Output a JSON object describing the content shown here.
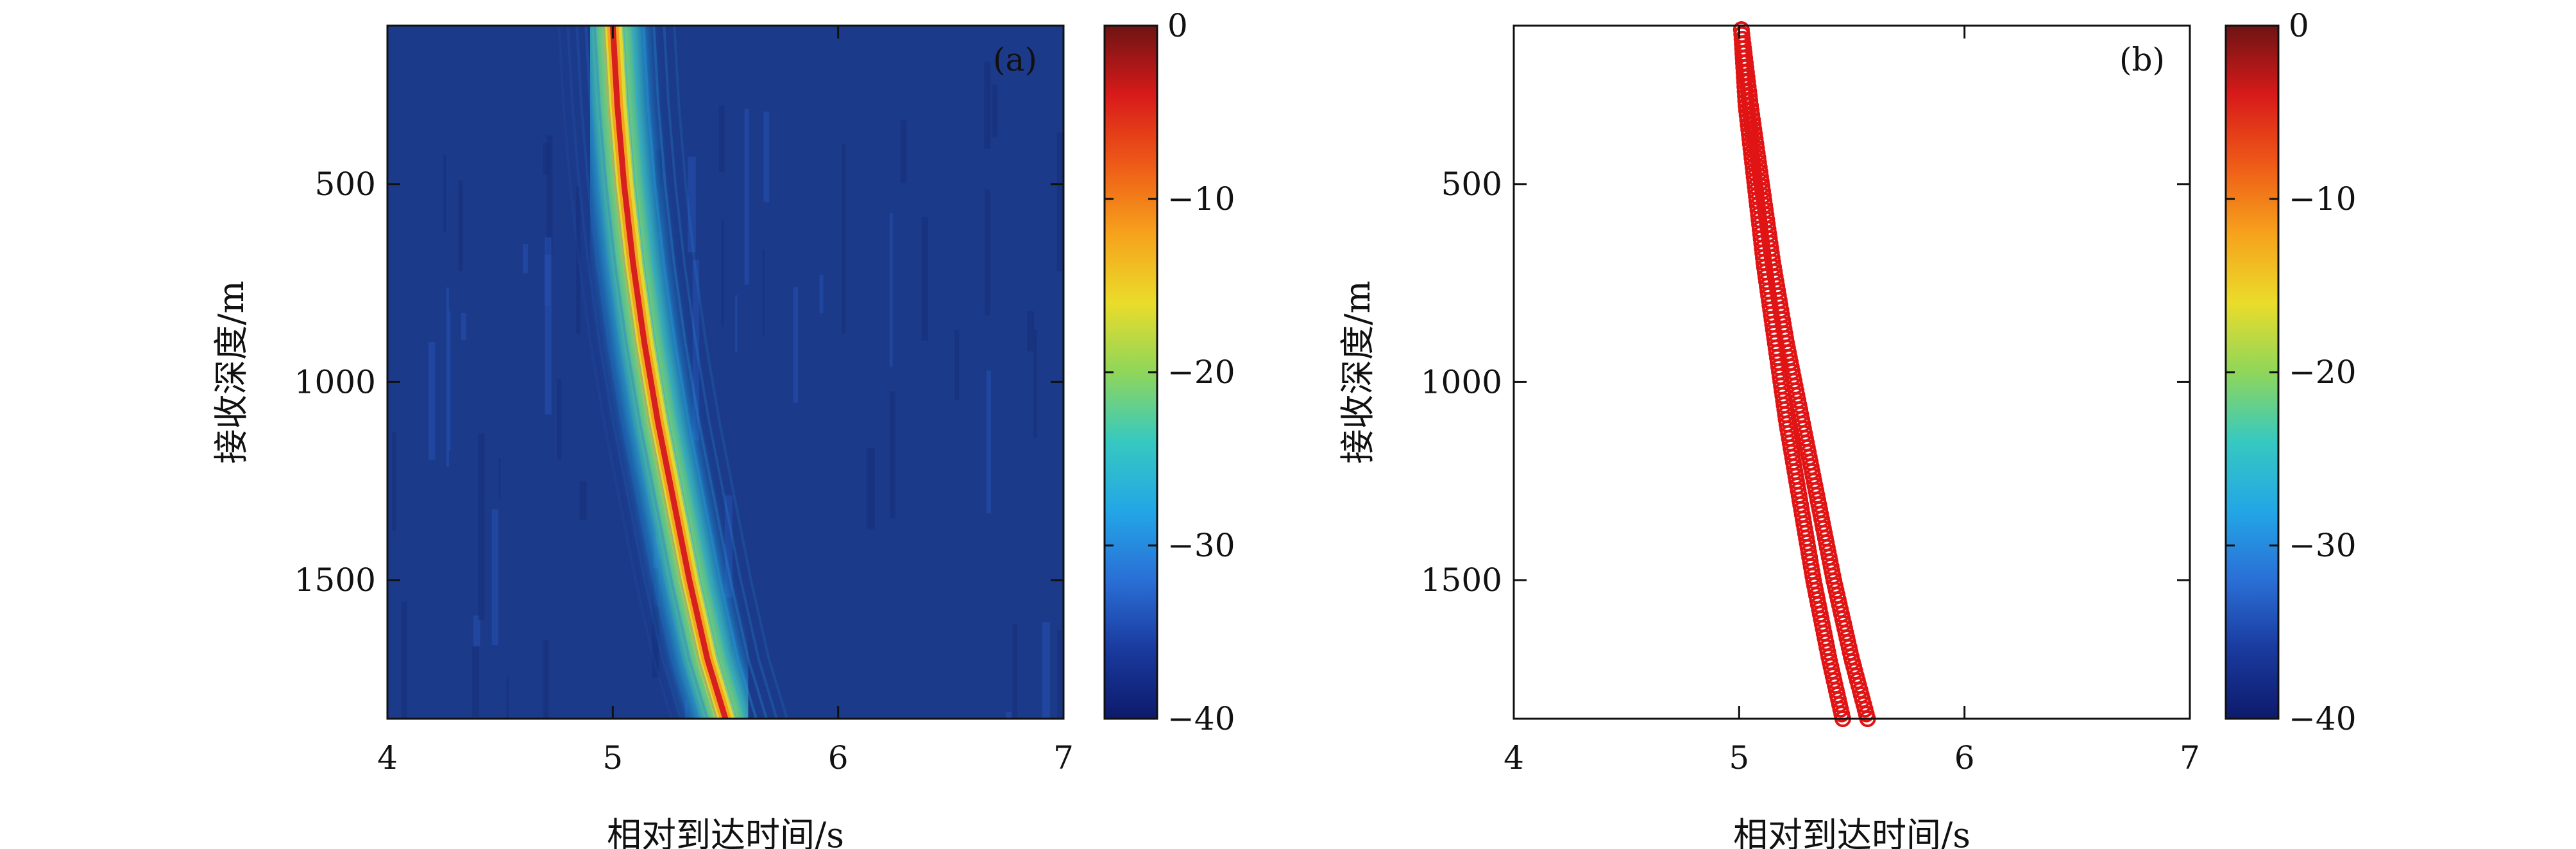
{
  "colors": {
    "background": "#1c3a8a",
    "ridge_high": "#d62020",
    "marker": "#e01414",
    "axis": "#111111"
  },
  "colormap": [
    "#0d1a6b",
    "#1a3a9e",
    "#2a6fd6",
    "#23a6e6",
    "#36c9c0",
    "#8fd65a",
    "#eadc2a",
    "#f6a21c",
    "#ee5a17",
    "#d81a1a",
    "#6e1414"
  ],
  "chart_data": [
    {
      "panel_label": "(a)",
      "type": "heatmap",
      "xlabel": "相对到达时间/s",
      "ylabel": "接收深度/m",
      "xlim": [
        4,
        7
      ],
      "ylim": [
        1850,
        100
      ],
      "y_reversed": true,
      "xticks": [
        "4",
        "5",
        "6",
        "7"
      ],
      "yticks": [
        "500",
        "1000",
        "1500"
      ],
      "colorbar": {
        "ticks": [
          "0",
          "−10",
          "−20",
          "−30",
          "−40"
        ],
        "range": [
          -40,
          0
        ]
      },
      "ridge": [
        {
          "depth": 100,
          "time": 5.0
        },
        {
          "depth": 300,
          "time": 5.02
        },
        {
          "depth": 500,
          "time": 5.05
        },
        {
          "depth": 700,
          "time": 5.09
        },
        {
          "depth": 900,
          "time": 5.14
        },
        {
          "depth": 1100,
          "time": 5.2
        },
        {
          "depth": 1300,
          "time": 5.27
        },
        {
          "depth": 1500,
          "time": 5.34
        },
        {
          "depth": 1700,
          "time": 5.42
        },
        {
          "depth": 1850,
          "time": 5.5
        }
      ]
    },
    {
      "panel_label": "(b)",
      "type": "scatter",
      "xlabel": "相对到达时间/s",
      "ylabel": "接收深度/m",
      "xlim": [
        4,
        7
      ],
      "ylim": [
        1850,
        100
      ],
      "y_reversed": true,
      "xticks": [
        "4",
        "5",
        "6",
        "7"
      ],
      "yticks": [
        "500",
        "1000",
        "1500"
      ],
      "colorbar": {
        "ticks": [
          "0",
          "−10",
          "−20",
          "−30",
          "−40"
        ],
        "range": [
          -40,
          0
        ]
      },
      "series": [
        {
          "marker": "circle",
          "points": [
            {
              "depth": 110,
              "time": 5.01
            },
            {
              "depth": 300,
              "time": 5.03
            },
            {
              "depth": 500,
              "time": 5.07
            },
            {
              "depth": 700,
              "time": 5.11
            },
            {
              "depth": 900,
              "time": 5.16
            },
            {
              "depth": 1100,
              "time": 5.21
            },
            {
              "depth": 1300,
              "time": 5.27
            },
            {
              "depth": 1500,
              "time": 5.33
            },
            {
              "depth": 1700,
              "time": 5.4
            },
            {
              "depth": 1850,
              "time": 5.46
            }
          ]
        },
        {
          "marker": "circle",
          "points": [
            {
              "depth": 110,
              "time": 5.01
            },
            {
              "depth": 300,
              "time": 5.05
            },
            {
              "depth": 500,
              "time": 5.1
            },
            {
              "depth": 700,
              "time": 5.15
            },
            {
              "depth": 900,
              "time": 5.21
            },
            {
              "depth": 1100,
              "time": 5.28
            },
            {
              "depth": 1300,
              "time": 5.35
            },
            {
              "depth": 1500,
              "time": 5.42
            },
            {
              "depth": 1700,
              "time": 5.5
            },
            {
              "depth": 1850,
              "time": 5.57
            }
          ]
        }
      ]
    }
  ]
}
